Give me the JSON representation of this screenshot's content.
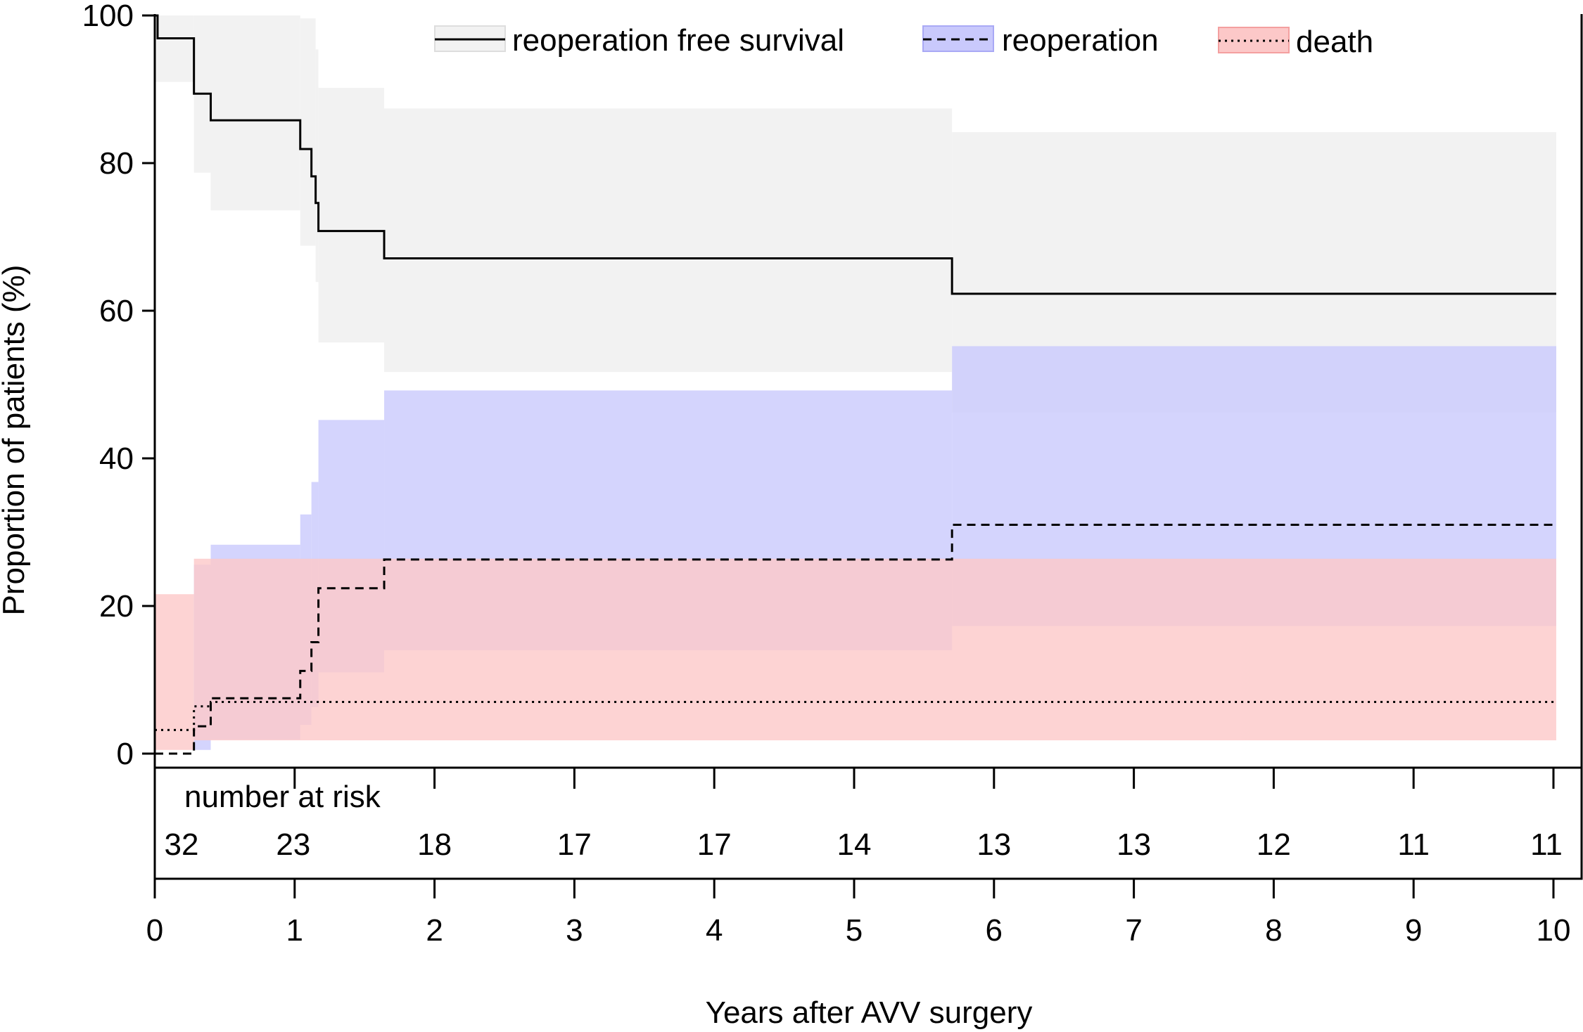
{
  "chart_data": {
    "type": "line",
    "subtype": "kaplan-meier step curves with confidence bands",
    "ylabel": "Proportion of patients (%)",
    "xlabel": "Years after AVV surgery",
    "xlim": [
      0,
      10.02
    ],
    "ylim": [
      0,
      100
    ],
    "x_ticks": [
      0,
      1,
      2,
      3,
      4,
      5,
      6,
      7,
      8,
      9,
      10
    ],
    "y_ticks": [
      0,
      20,
      40,
      60,
      80,
      100
    ],
    "legend": [
      {
        "label": "reoperation free survival",
        "line": "solid",
        "band_color": "#f2f2f2",
        "band_border": "#dddddd"
      },
      {
        "label": "reoperation",
        "line": "dashed",
        "band_color": "#c9c9fc",
        "band_border": "#a9a9f5"
      },
      {
        "label": "death",
        "line": "dotted",
        "band_color": "#fcc8c8",
        "band_border": "#f4a0a0"
      }
    ],
    "series": [
      {
        "name": "reoperation free survival",
        "line": "solid",
        "steps": [
          [
            0,
            100
          ],
          [
            0.02,
            96.9
          ],
          [
            0.28,
            89.4
          ],
          [
            0.4,
            85.8
          ],
          [
            1.04,
            81.9
          ],
          [
            1.12,
            78.2
          ],
          [
            1.15,
            74.6
          ],
          [
            1.17,
            70.8
          ],
          [
            1.64,
            67.1
          ],
          [
            5.7,
            62.3
          ],
          [
            10.02,
            62.3
          ]
        ],
        "band": [
          [
            0,
            91.0,
            100
          ],
          [
            0.28,
            78.7,
            100
          ],
          [
            0.4,
            73.6,
            100
          ],
          [
            1.04,
            68.8,
            99.6
          ],
          [
            1.15,
            63.9,
            95.4
          ],
          [
            1.17,
            55.7,
            90.2
          ],
          [
            1.64,
            51.7,
            87.4
          ],
          [
            5.7,
            46.2,
            84.2
          ],
          [
            10.02,
            46.2,
            84.2
          ]
        ]
      },
      {
        "name": "reoperation",
        "line": "dashed",
        "steps": [
          [
            0,
            0
          ],
          [
            0.28,
            3.7
          ],
          [
            0.4,
            7.5
          ],
          [
            1.04,
            11.2
          ],
          [
            1.12,
            15.1
          ],
          [
            1.17,
            22.4
          ],
          [
            1.64,
            26.3
          ],
          [
            5.7,
            31.0
          ],
          [
            10.02,
            31.0
          ]
        ],
        "band": [
          [
            0,
            0,
            0
          ],
          [
            0.28,
            0.5,
            25.6
          ],
          [
            0.4,
            1.9,
            28.3
          ],
          [
            1.04,
            3.9,
            32.4
          ],
          [
            1.12,
            6.3,
            36.8
          ],
          [
            1.17,
            11.0,
            45.2
          ],
          [
            1.64,
            14.0,
            49.2
          ],
          [
            5.7,
            17.3,
            55.2
          ],
          [
            10.02,
            17.3,
            55.2
          ]
        ]
      },
      {
        "name": "death",
        "line": "dotted",
        "steps": [
          [
            0,
            3.2
          ],
          [
            0.28,
            6.4
          ],
          [
            0.4,
            7.0
          ],
          [
            10.02,
            7.0
          ]
        ],
        "band": [
          [
            0,
            0.5,
            21.6
          ],
          [
            0.28,
            1.8,
            26.4
          ],
          [
            10.02,
            1.8,
            26.4
          ]
        ]
      }
    ],
    "risk_table": {
      "title": "number at risk",
      "times": [
        0.2,
        1,
        2,
        3,
        4,
        5,
        6,
        7,
        8,
        9,
        10
      ],
      "counts": [
        "32",
        "23",
        "18",
        "17",
        "17",
        "14",
        "13",
        "13",
        "12",
        "11",
        "11"
      ]
    }
  }
}
